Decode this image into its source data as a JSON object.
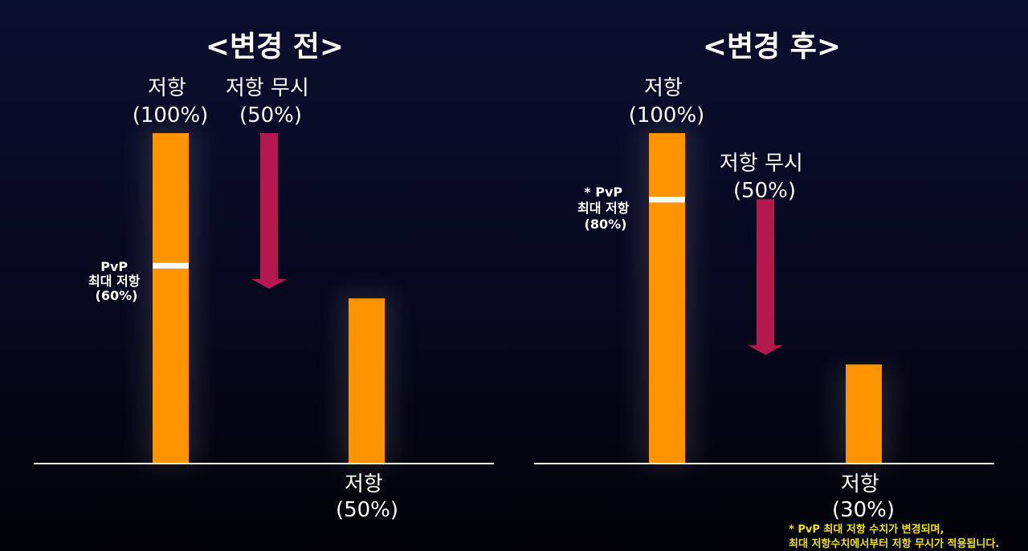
{
  "colors": {
    "bar": "#ff9300",
    "arrow": "#b5174f",
    "baseline": "#ffffff",
    "marker": "#ffffff",
    "note": "#f2e200"
  },
  "panels": {
    "before": {
      "title": "<변경 전>",
      "bar_full_label": [
        "저항",
        "(100%)"
      ],
      "arrow_label": [
        "저항 무시",
        "(50%)"
      ],
      "marker_label": [
        "PvP",
        "최대 저항",
        "(60%)"
      ],
      "result_label": [
        "저항",
        "(50%)"
      ]
    },
    "after": {
      "title": "<변경 후>",
      "bar_full_label": [
        "저항",
        "(100%)"
      ],
      "arrow_label": [
        "저항 무시",
        "(50%)"
      ],
      "marker_label": [
        "* PvP",
        "최대 저항",
        "(80%)"
      ],
      "result_label": [
        "저항",
        "(30%)"
      ]
    }
  },
  "footnote": [
    "* PvP 최대 저항 수치가 변경되며,",
    "최대 저항수치에서부터 저항 무시가 적용됩니다."
  ],
  "chart_data": [
    {
      "type": "bar",
      "title": "<변경 전>",
      "categories": [
        "저항 (100%)",
        "저항 (50%)"
      ],
      "values": [
        100,
        50
      ],
      "marker": {
        "label": "PvP 최대 저항 (60%)",
        "value": 60
      },
      "arrow": {
        "label": "저항 무시 (50%)",
        "from": 100,
        "to": 50
      },
      "ylim": [
        0,
        100
      ]
    },
    {
      "type": "bar",
      "title": "<변경 후>",
      "categories": [
        "저항 (100%)",
        "저항 (30%)"
      ],
      "values": [
        100,
        30
      ],
      "marker": {
        "label": "* PvP 최대 저항 (80%)",
        "value": 80
      },
      "arrow": {
        "label": "저항 무시 (50%)",
        "from": 80,
        "to": 30
      },
      "ylim": [
        0,
        100
      ]
    }
  ]
}
